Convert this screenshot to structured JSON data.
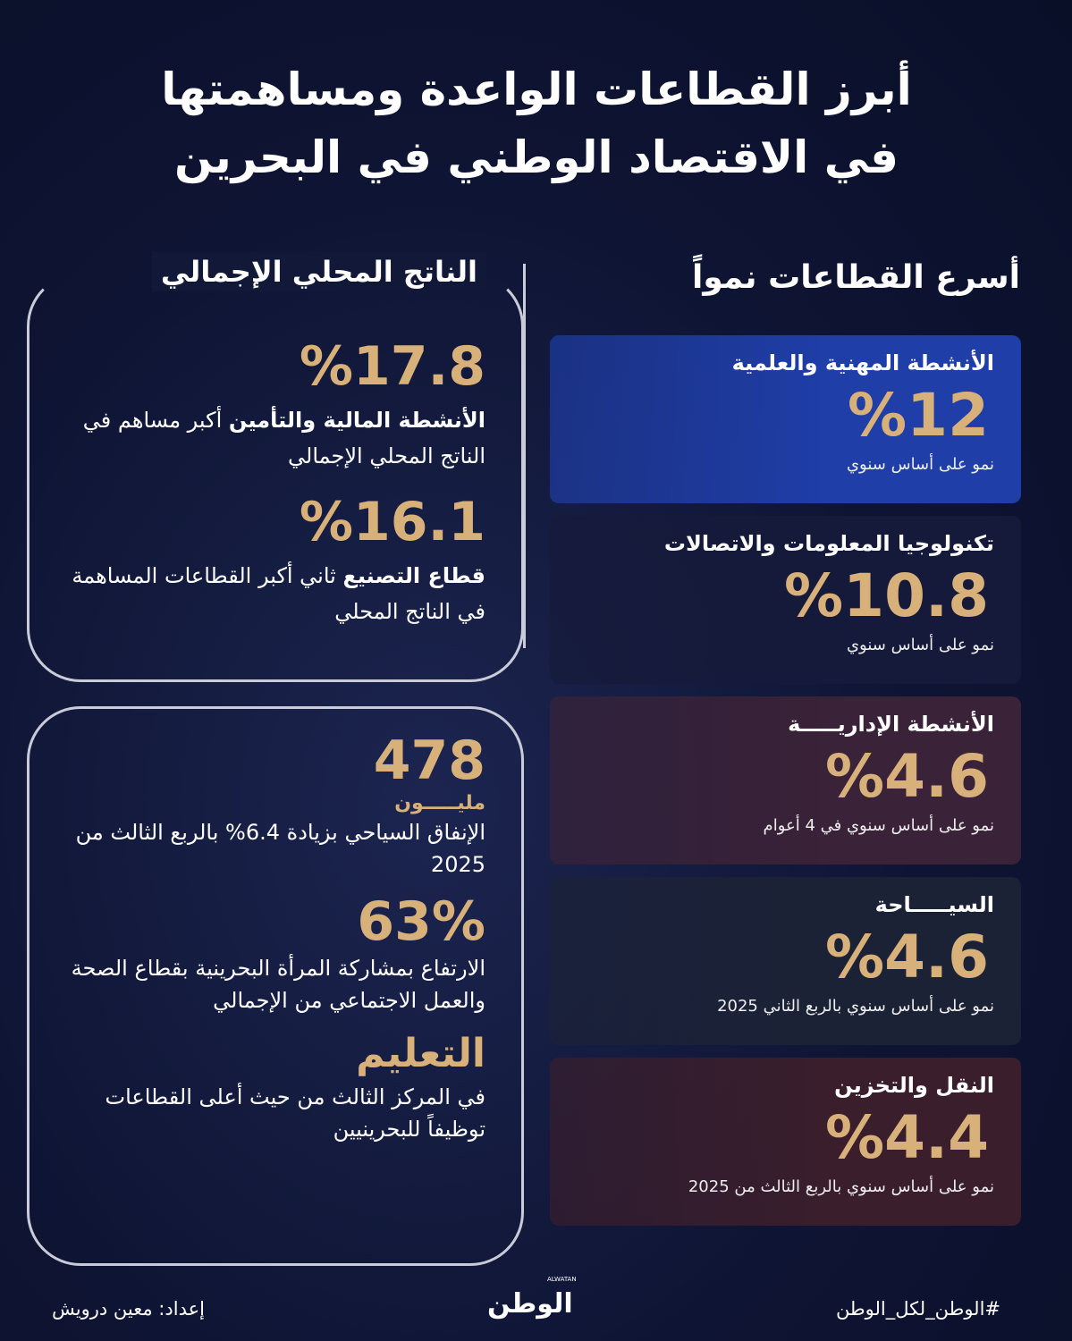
{
  "title": {
    "line1": "أبرز القطاعات الواعدة ومساهمتها",
    "line2": "في الاقتصاد الوطني في البحرين"
  },
  "fastest": {
    "heading": "أسرع القطاعات نمواً",
    "cards": [
      {
        "name": "الأنشطة المهنية والعلمية",
        "value": "%12",
        "note": "نمو على أساس سنوي",
        "color": "#1f3ea8"
      },
      {
        "name": "تكنولوجيا المعلومات والاتصالات",
        "value": "%10.8",
        "note": "نمو على أساس سنوي",
        "color": "#161a3a"
      },
      {
        "name": "الأنشطة الإداريـــــة",
        "value": "%4.6",
        "note": "نمو على أساس سنوي في 4 أعوام",
        "color": "#3a2238"
      },
      {
        "name": "السيـــــاحة",
        "value": "%4.6",
        "note": "نمو على أساس سنوي بالربع الثاني 2025",
        "color": "#1c2236"
      },
      {
        "name": "النقل والتخزين",
        "value": "%4.4",
        "note": "نمو على أساس سنوي بالربع الثالث من 2025",
        "color": "#3a1e2c"
      }
    ]
  },
  "gdp": {
    "heading": "الناتج المحلي الإجمالي",
    "item1": {
      "value": "%17.8",
      "bold": "الأنشطة المالية والتأمين",
      "text": " أكبر مساهم في الناتج المحلي الإجمالي"
    },
    "item2": {
      "value": "%16.1",
      "bold": "قطاع التصنيع",
      "text": " ثاني أكبر القطاعات المساهمة في الناتج المحلي"
    }
  },
  "other": {
    "tourism": {
      "value": "478",
      "unit": "مليـــــون",
      "text": "الإنفاق السياحي بزيادة 6.4% بالربع الثالث من 2025"
    },
    "women": {
      "value": "63%",
      "text": "الارتفاع بمشاركة المرأة البحرينية بقطاع الصحة والعمل الاجتماعي من الإجمالي"
    },
    "education": {
      "value": "التعليم",
      "text": "في المركز الثالث من حيث أعلى القطاعات توظيفاً للبحرينيين"
    }
  },
  "footer": {
    "hashtag": "#الوطن_لكل_الوطن",
    "logo": "الوطن",
    "logo_latin": "ALWATAN",
    "credit": "إعداد: معين درويش"
  },
  "colors": {
    "background": "#0e1433",
    "accent": "#d8b07a"
  }
}
